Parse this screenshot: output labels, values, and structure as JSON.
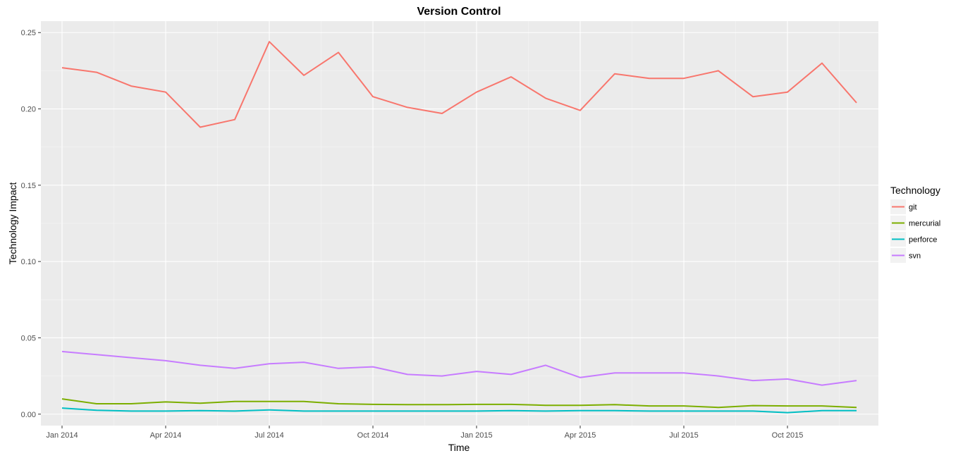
{
  "chart_data": {
    "type": "line",
    "title": "Version Control",
    "xlabel": "Time",
    "ylabel": "Technology Impact",
    "ylim": [
      -0.0075,
      0.2575
    ],
    "y_ticks": [
      0.0,
      0.05,
      0.1,
      0.15,
      0.2,
      0.25
    ],
    "y_tick_labels": [
      "0.00",
      "0.05",
      "0.10",
      "0.15",
      "0.20",
      "0.25"
    ],
    "x_tick_labels": [
      "Jan 2014",
      "Apr 2014",
      "Jul 2014",
      "Oct 2014",
      "Jan 2015",
      "Apr 2015",
      "Jul 2015",
      "Oct 2015"
    ],
    "x": [
      "2014-01",
      "2014-02",
      "2014-03",
      "2014-04",
      "2014-05",
      "2014-06",
      "2014-07",
      "2014-08",
      "2014-09",
      "2014-10",
      "2014-11",
      "2014-12",
      "2015-01",
      "2015-02",
      "2015-03",
      "2015-04",
      "2015-05",
      "2015-06",
      "2015-07",
      "2015-08",
      "2015-09",
      "2015-10",
      "2015-11",
      "2015-12"
    ],
    "grid": true,
    "legend": {
      "title": "Technology",
      "position": "right"
    },
    "series": [
      {
        "name": "git",
        "color": "#F8766D",
        "values": [
          0.227,
          0.224,
          0.215,
          0.211,
          0.188,
          0.193,
          0.244,
          0.222,
          0.237,
          0.208,
          0.201,
          0.197,
          0.211,
          0.221,
          0.207,
          0.199,
          0.223,
          0.22,
          0.22,
          0.225,
          0.208,
          0.211,
          0.23,
          0.204
        ]
      },
      {
        "name": "mercurial",
        "color": "#7CAE00",
        "values": [
          0.01,
          0.0068,
          0.0068,
          0.008,
          0.0072,
          0.0083,
          0.0083,
          0.0083,
          0.0068,
          0.0064,
          0.0062,
          0.0062,
          0.0064,
          0.0064,
          0.0058,
          0.0058,
          0.0062,
          0.0054,
          0.0054,
          0.0044,
          0.0056,
          0.0054,
          0.0054,
          0.0044
        ]
      },
      {
        "name": "perforce",
        "color": "#00BFC4",
        "values": [
          0.004,
          0.0025,
          0.002,
          0.002,
          0.0023,
          0.002,
          0.0028,
          0.002,
          0.002,
          0.002,
          0.002,
          0.002,
          0.002,
          0.0023,
          0.002,
          0.0023,
          0.0023,
          0.002,
          0.002,
          0.002,
          0.002,
          0.001,
          0.0023,
          0.0023
        ]
      },
      {
        "name": "svn",
        "color": "#C77CFF",
        "values": [
          0.041,
          0.039,
          0.037,
          0.035,
          0.032,
          0.03,
          0.033,
          0.034,
          0.03,
          0.031,
          0.026,
          0.025,
          0.028,
          0.026,
          0.032,
          0.024,
          0.027,
          0.027,
          0.027,
          0.025,
          0.022,
          0.023,
          0.019,
          0.022
        ]
      }
    ]
  }
}
